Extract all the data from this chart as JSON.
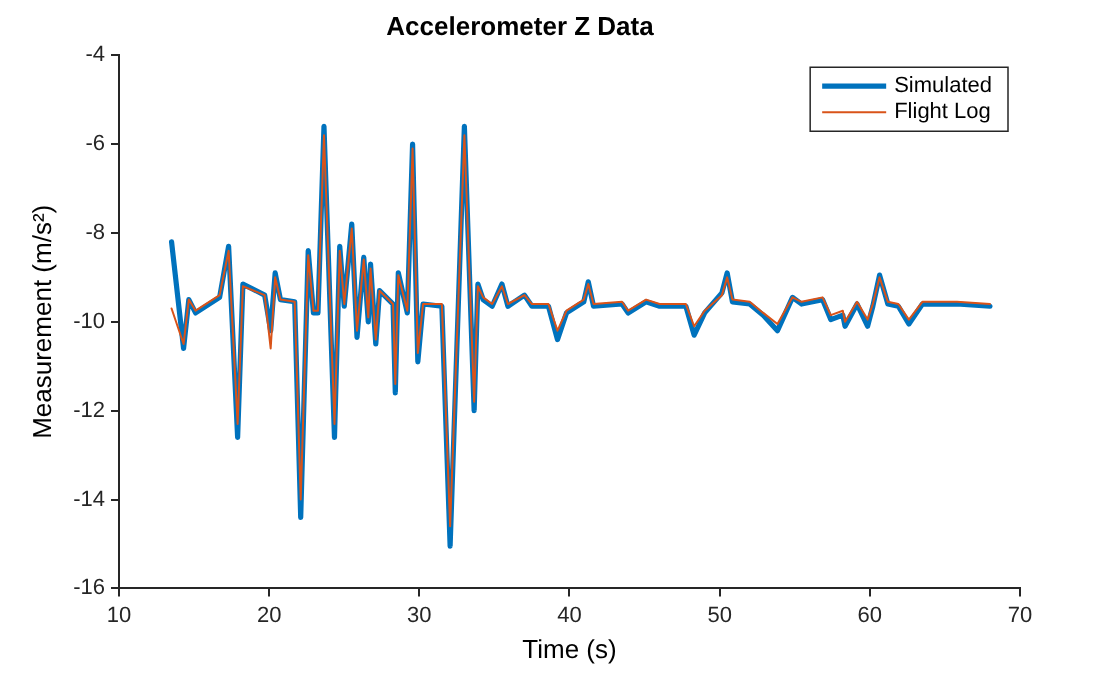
{
  "chart_data": {
    "type": "line",
    "title": "Accelerometer Z Data",
    "xlabel": "Time (s)",
    "ylabel": "Measurement (m/s²)",
    "xlim": [
      10,
      70
    ],
    "xticks": [
      10,
      20,
      30,
      40,
      50,
      60,
      70
    ],
    "ylim": [
      -16,
      -4
    ],
    "yticks": [
      -16,
      -14,
      -12,
      -10,
      -8,
      -6,
      -4
    ],
    "grid": false,
    "legend": "top right",
    "marker": "none",
    "line_style": "solid",
    "series": [
      {
        "name": "Simulated",
        "color": "#0072bd",
        "x": [
          13.5,
          14.3,
          14.65,
          15.1,
          16.7,
          17.3,
          17.9,
          18.25,
          19.7,
          20.1,
          20.4,
          20.75,
          21.7,
          22.1,
          22.6,
          22.95,
          23.25,
          23.65,
          24.35,
          24.7,
          25.0,
          25.5,
          25.85,
          26.3,
          26.6,
          26.75,
          27.1,
          27.35,
          28.25,
          28.4,
          28.6,
          29.2,
          29.55,
          29.9,
          30.25,
          31.5,
          32.05,
          33.0,
          33.65,
          33.9,
          34.25,
          34.85,
          35.5,
          35.9,
          37.0,
          37.5,
          38.6,
          39.2,
          39.8,
          40.95,
          41.25,
          41.6,
          43.5,
          43.9,
          45.1,
          46.0,
          47.75,
          48.3,
          49.0,
          50.15,
          50.5,
          50.85,
          52.0,
          52.9,
          53.85,
          54.85,
          55.45,
          56.85,
          57.4,
          58.2,
          58.35,
          59.15,
          59.85,
          60.2,
          60.65,
          61.2,
          61.9,
          62.6,
          63.5,
          65.8,
          68.0
        ],
        "values": [
          -8.2,
          -10.6,
          -9.5,
          -9.8,
          -9.45,
          -8.3,
          -12.6,
          -9.15,
          -9.4,
          -10.2,
          -8.9,
          -9.5,
          -9.55,
          -14.4,
          -8.4,
          -9.8,
          -9.8,
          -5.6,
          -12.6,
          -8.3,
          -9.65,
          -7.8,
          -10.35,
          -8.55,
          -10.0,
          -8.7,
          -10.5,
          -9.3,
          -9.6,
          -11.6,
          -8.9,
          -9.8,
          -6.0,
          -10.9,
          -9.6,
          -9.65,
          -15.05,
          -5.6,
          -12.0,
          -9.15,
          -9.5,
          -9.65,
          -9.15,
          -9.65,
          -9.4,
          -9.65,
          -9.65,
          -10.4,
          -9.8,
          -9.55,
          -9.1,
          -9.65,
          -9.6,
          -9.8,
          -9.55,
          -9.65,
          -9.65,
          -10.3,
          -9.8,
          -9.35,
          -8.9,
          -9.55,
          -9.6,
          -9.85,
          -10.2,
          -9.45,
          -9.6,
          -9.5,
          -9.95,
          -9.85,
          -10.1,
          -9.6,
          -10.1,
          -9.65,
          -8.95,
          -9.6,
          -9.65,
          -10.05,
          -9.6,
          -9.6,
          -9.65
        ]
      },
      {
        "name": "Flight Log",
        "color": "#d95319",
        "x": [
          13.5,
          14.3,
          14.65,
          15.1,
          16.7,
          17.3,
          17.9,
          18.25,
          19.7,
          20.1,
          20.4,
          20.75,
          21.7,
          22.1,
          22.6,
          22.95,
          23.25,
          23.65,
          24.35,
          24.7,
          25.0,
          25.5,
          25.85,
          26.3,
          26.6,
          26.75,
          27.1,
          27.35,
          28.25,
          28.4,
          28.6,
          29.2,
          29.55,
          29.9,
          30.25,
          31.5,
          32.05,
          33.0,
          33.65,
          33.9,
          34.25,
          34.85,
          35.5,
          35.9,
          37.0,
          37.5,
          38.6,
          39.2,
          39.8,
          40.95,
          41.25,
          41.6,
          43.5,
          43.9,
          45.1,
          46.0,
          47.75,
          48.3,
          49.0,
          50.15,
          50.5,
          50.85,
          52.0,
          52.9,
          53.85,
          54.85,
          55.45,
          56.85,
          57.4,
          58.2,
          58.35,
          59.15,
          59.85,
          60.2,
          60.65,
          61.2,
          61.9,
          62.6,
          63.5,
          65.8,
          68.0
        ],
        "values": [
          -9.7,
          -10.5,
          -9.5,
          -9.75,
          -9.4,
          -8.4,
          -12.3,
          -9.2,
          -9.4,
          -10.6,
          -9.0,
          -9.5,
          -9.55,
          -14.0,
          -8.5,
          -9.75,
          -9.75,
          -5.8,
          -12.3,
          -8.4,
          -9.6,
          -7.9,
          -10.2,
          -8.6,
          -9.9,
          -8.8,
          -10.4,
          -9.3,
          -9.6,
          -11.4,
          -8.95,
          -9.75,
          -6.1,
          -10.7,
          -9.6,
          -9.6,
          -14.6,
          -5.8,
          -11.8,
          -9.2,
          -9.45,
          -9.6,
          -9.2,
          -9.6,
          -9.4,
          -9.6,
          -9.6,
          -10.2,
          -9.75,
          -9.5,
          -9.15,
          -9.6,
          -9.55,
          -9.75,
          -9.5,
          -9.6,
          -9.6,
          -10.1,
          -9.75,
          -9.4,
          -9.0,
          -9.5,
          -9.55,
          -9.8,
          -10.05,
          -9.45,
          -9.55,
          -9.45,
          -9.85,
          -9.75,
          -10.0,
          -9.55,
          -9.95,
          -9.6,
          -9.0,
          -9.55,
          -9.6,
          -9.95,
          -9.55,
          -9.55,
          -9.6
        ]
      }
    ]
  }
}
